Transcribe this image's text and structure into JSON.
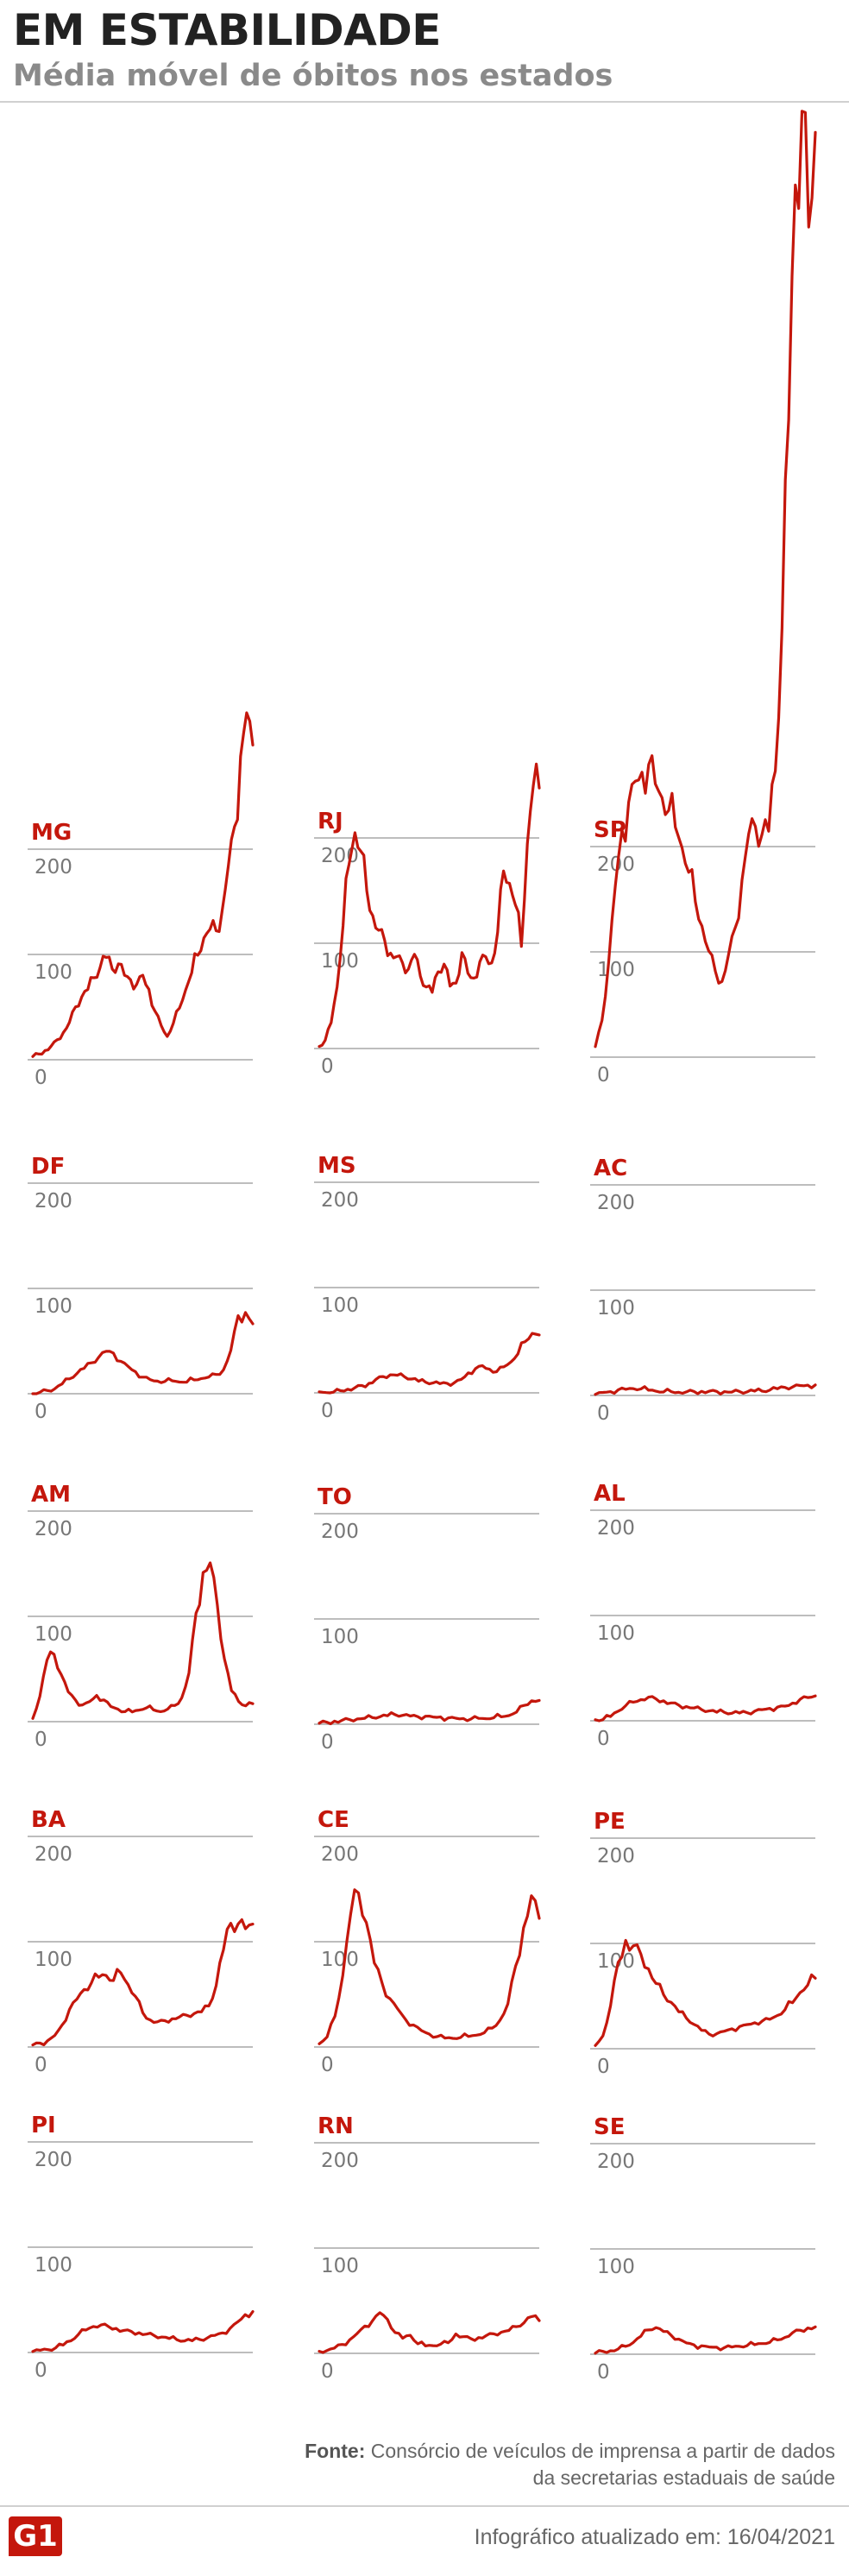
{
  "header": {
    "title": "EM ESTABILIDADE",
    "subtitle": "Média móvel de óbitos nos estados"
  },
  "footer": {
    "source_label": "Fonte:",
    "source_text": "Consórcio de veículos de imprensa a partir de dados da secretarias estaduais de saúde",
    "updated": "Infográfico atualizado em: 16/04/2021",
    "logo": "G1"
  },
  "colors": {
    "series": "#c4170c",
    "grid": "#bdbdbd",
    "label": "#c4170c"
  },
  "chart_data": [
    {
      "type": "line",
      "state": "MG",
      "yticks": [
        0,
        100,
        200
      ],
      "ylim": [
        0,
        330
      ],
      "values": [
        3,
        5,
        8,
        12,
        18,
        25,
        35,
        50,
        60,
        68,
        80,
        90,
        100,
        88,
        92,
        80,
        75,
        70,
        78,
        65,
        45,
        32,
        22,
        35,
        50,
        68,
        85,
        102,
        118,
        125,
        122,
        140,
        180,
        215,
        280,
        322,
        295
      ]
    },
    {
      "type": "line",
      "state": "RJ",
      "yticks": [
        0,
        100,
        200
      ],
      "ylim": [
        0,
        260
      ],
      "values": [
        2,
        8,
        25,
        60,
        120,
        180,
        210,
        190,
        150,
        125,
        110,
        100,
        88,
        85,
        80,
        75,
        90,
        70,
        60,
        55,
        75,
        82,
        60,
        62,
        90,
        70,
        65,
        80,
        85,
        80,
        110,
        170,
        160,
        140,
        100,
        200,
        255,
        250
      ]
    },
    {
      "type": "line",
      "state": "SP",
      "yticks": [
        0,
        100,
        200
      ],
      "ylim": [
        0,
        900
      ],
      "values": [
        10,
        35,
        90,
        160,
        210,
        235,
        255,
        265,
        275,
        260,
        250,
        240,
        225,
        205,
        180,
        150,
        125,
        100,
        80,
        70,
        95,
        120,
        165,
        210,
        220,
        215,
        220,
        280,
        420,
        620,
        840,
        900,
        780,
        860
      ]
    },
    {
      "type": "line",
      "state": "DF",
      "yticks": [
        0,
        100,
        200
      ],
      "ylim": [
        0,
        200
      ],
      "values": [
        0,
        1,
        3,
        5,
        10,
        15,
        20,
        25,
        30,
        35,
        40,
        38,
        30,
        25,
        20,
        15,
        13,
        12,
        12,
        13,
        12,
        12,
        14,
        15,
        16,
        18,
        22,
        40,
        72,
        75,
        65
      ]
    },
    {
      "type": "line",
      "state": "MS",
      "yticks": [
        0,
        100,
        200
      ],
      "ylim": [
        0,
        200
      ],
      "values": [
        1,
        1,
        1,
        2,
        3,
        4,
        6,
        8,
        12,
        15,
        17,
        17,
        16,
        14,
        12,
        11,
        10,
        9,
        9,
        9,
        12,
        18,
        22,
        25,
        22,
        20,
        25,
        30,
        38,
        50,
        58,
        56
      ]
    },
    {
      "type": "line",
      "state": "AC",
      "yticks": [
        0,
        100,
        200
      ],
      "ylim": [
        0,
        200
      ],
      "values": [
        1,
        2,
        3,
        5,
        6,
        7,
        7,
        6,
        5,
        4,
        4,
        3,
        3,
        3,
        3,
        3,
        3,
        3,
        3,
        4,
        4,
        5,
        5,
        6,
        7,
        8,
        8,
        9,
        9,
        9
      ]
    },
    {
      "type": "line",
      "state": "AM",
      "yticks": [
        0,
        100,
        200
      ],
      "ylim": [
        0,
        200
      ],
      "values": [
        3,
        25,
        60,
        65,
        45,
        28,
        20,
        15,
        18,
        24,
        20,
        14,
        12,
        10,
        10,
        12,
        14,
        12,
        10,
        12,
        15,
        22,
        45,
        100,
        138,
        148,
        110,
        60,
        30,
        20,
        16,
        18
      ]
    },
    {
      "type": "line",
      "state": "TO",
      "yticks": [
        0,
        100,
        200
      ],
      "ylim": [
        0,
        200
      ],
      "values": [
        1,
        1,
        2,
        3,
        4,
        5,
        6,
        7,
        8,
        9,
        10,
        9,
        8,
        7,
        7,
        6,
        6,
        5,
        5,
        5,
        5,
        6,
        6,
        7,
        8,
        9,
        12,
        18,
        22,
        22
      ]
    },
    {
      "type": "line",
      "state": "AL",
      "yticks": [
        0,
        100,
        200
      ],
      "ylim": [
        0,
        200
      ],
      "values": [
        1,
        2,
        5,
        10,
        15,
        18,
        20,
        22,
        20,
        18,
        16,
        14,
        13,
        12,
        11,
        10,
        9,
        9,
        8,
        8,
        8,
        9,
        10,
        11,
        12,
        13,
        16,
        20,
        22,
        24
      ]
    },
    {
      "type": "line",
      "state": "BA",
      "yticks": [
        0,
        100,
        200
      ],
      "ylim": [
        0,
        200
      ],
      "values": [
        2,
        3,
        5,
        10,
        20,
        35,
        45,
        55,
        62,
        68,
        70,
        65,
        72,
        60,
        48,
        32,
        25,
        23,
        24,
        26,
        28,
        30,
        32,
        34,
        40,
        60,
        95,
        120,
        118,
        112,
        115
      ]
    },
    {
      "type": "line",
      "state": "CE",
      "yticks": [
        0,
        100,
        200
      ],
      "ylim": [
        0,
        200
      ],
      "values": [
        3,
        10,
        30,
        70,
        130,
        150,
        120,
        80,
        60,
        45,
        35,
        25,
        20,
        15,
        12,
        10,
        9,
        9,
        10,
        11,
        12,
        14,
        18,
        25,
        40,
        75,
        110,
        140,
        120
      ]
    },
    {
      "type": "line",
      "state": "PE",
      "yticks": [
        0,
        100,
        200
      ],
      "ylim": [
        0,
        200
      ],
      "values": [
        3,
        12,
        40,
        80,
        100,
        95,
        88,
        75,
        62,
        52,
        45,
        36,
        30,
        24,
        18,
        14,
        14,
        16,
        18,
        20,
        22,
        24,
        26,
        28,
        32,
        38,
        45,
        55,
        62,
        68
      ]
    },
    {
      "type": "line",
      "state": "PI",
      "yticks": [
        0,
        100,
        200
      ],
      "ylim": [
        0,
        200
      ],
      "values": [
        1,
        2,
        3,
        5,
        8,
        12,
        18,
        22,
        25,
        26,
        24,
        22,
        20,
        19,
        18,
        17,
        16,
        15,
        14,
        13,
        12,
        12,
        13,
        14,
        16,
        18,
        22,
        28,
        35,
        38
      ]
    },
    {
      "type": "line",
      "state": "RN",
      "yticks": [
        0,
        100,
        200
      ],
      "ylim": [
        0,
        200
      ],
      "values": [
        2,
        3,
        5,
        8,
        12,
        18,
        25,
        30,
        38,
        32,
        20,
        15,
        18,
        10,
        8,
        8,
        9,
        10,
        18,
        15,
        13,
        14,
        16,
        18,
        20,
        22,
        26,
        30,
        36,
        32
      ]
    },
    {
      "type": "line",
      "state": "SE",
      "yticks": [
        0,
        100,
        200
      ],
      "ylim": [
        0,
        200
      ],
      "values": [
        1,
        2,
        3,
        5,
        8,
        12,
        18,
        24,
        26,
        22,
        18,
        14,
        10,
        8,
        7,
        6,
        6,
        6,
        7,
        8,
        9,
        10,
        11,
        12,
        14,
        16,
        20,
        22,
        24,
        25
      ]
    }
  ]
}
